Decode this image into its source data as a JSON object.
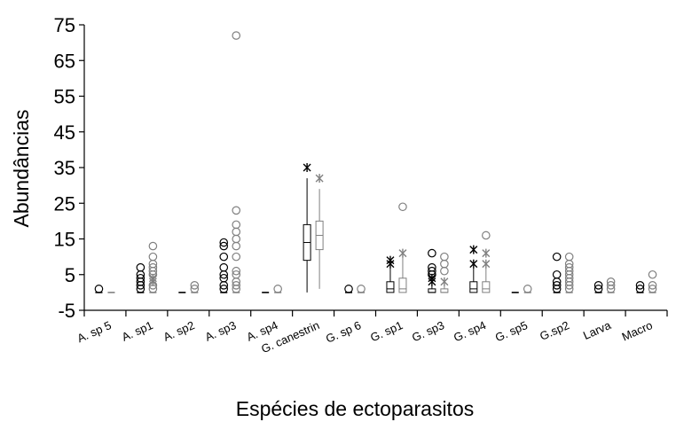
{
  "chart_data": {
    "type": "box",
    "title": "",
    "xlabel": "Espécies de ectoparasitos",
    "ylabel": "Abundâncias",
    "ylim": [
      -5,
      75
    ],
    "yticks": [
      -5,
      5,
      15,
      25,
      35,
      45,
      55,
      65,
      75
    ],
    "grid": false,
    "series_colors": {
      "a": "#000000",
      "b": "#808080"
    },
    "categories": [
      "A. sp 5",
      "A. sp1",
      "A. sp2",
      "A. sp3",
      "A. sp4",
      "G. canestrin",
      "G. sp 6",
      "G. sp1",
      "G. sp3",
      "G. sp4",
      "G. sp5",
      "G.sp2",
      "Larva",
      "Macro"
    ],
    "groups": [
      {
        "category": "A. sp 5",
        "a": {
          "q1": 0,
          "median": 0,
          "q3": 0,
          "whisker_low": 0,
          "whisker_high": 0,
          "outliers": [
            1
          ],
          "extremes": []
        },
        "b": {
          "q1": 0,
          "median": 0,
          "q3": 0,
          "whisker_low": 0,
          "whisker_high": 0,
          "outliers": [],
          "extremes": []
        }
      },
      {
        "category": "A. sp1",
        "a": {
          "q1": 0,
          "median": 0,
          "q3": 0,
          "whisker_low": 0,
          "whisker_high": 0,
          "outliers": [
            1,
            2,
            3,
            4,
            5,
            7
          ],
          "extremes": []
        },
        "b": {
          "q1": 0,
          "median": 0,
          "q3": 0,
          "whisker_low": 0,
          "whisker_high": 0,
          "outliers": [
            1,
            2,
            5,
            6,
            7,
            8,
            10,
            13
          ],
          "extremes": [
            3,
            4
          ]
        }
      },
      {
        "category": "A. sp2",
        "a": {
          "q1": 0,
          "median": 0,
          "q3": 0,
          "whisker_low": 0,
          "whisker_high": 0,
          "outliers": [],
          "extremes": []
        },
        "b": {
          "q1": 0,
          "median": 0,
          "q3": 0,
          "whisker_low": 0,
          "whisker_high": 0,
          "outliers": [
            1,
            2
          ],
          "extremes": []
        }
      },
      {
        "category": "A. sp3",
        "a": {
          "q1": 0,
          "median": 0,
          "q3": 0,
          "whisker_low": 0,
          "whisker_high": 0,
          "outliers": [
            1,
            2,
            4,
            5,
            7,
            10,
            13,
            14
          ],
          "extremes": []
        },
        "b": {
          "q1": 0,
          "median": 0,
          "q3": 0,
          "whisker_low": 0,
          "whisker_high": 0,
          "outliers": [
            1,
            2,
            3,
            5,
            6,
            10,
            13,
            15,
            17,
            19,
            23,
            72
          ],
          "extremes": []
        }
      },
      {
        "category": "A. sp4",
        "a": {
          "q1": 0,
          "median": 0,
          "q3": 0,
          "whisker_low": 0,
          "whisker_high": 0,
          "outliers": [],
          "extremes": []
        },
        "b": {
          "q1": 0,
          "median": 0,
          "q3": 0,
          "whisker_low": 0,
          "whisker_high": 0,
          "outliers": [
            1
          ],
          "extremes": []
        }
      },
      {
        "category": "G. canestrin",
        "a": {
          "q1": 9,
          "median": 14,
          "q3": 19,
          "whisker_low": 0,
          "whisker_high": 32,
          "outliers": [],
          "extremes": [
            35
          ]
        },
        "b": {
          "q1": 12,
          "median": 16,
          "q3": 20,
          "whisker_low": 1,
          "whisker_high": 29,
          "outliers": [],
          "extremes": [
            32
          ]
        }
      },
      {
        "category": "G. sp 6",
        "a": {
          "q1": 0,
          "median": 0,
          "q3": 0,
          "whisker_low": 0,
          "whisker_high": 0,
          "outliers": [
            1
          ],
          "extremes": []
        },
        "b": {
          "q1": 0,
          "median": 0,
          "q3": 0,
          "whisker_low": 0,
          "whisker_high": 0,
          "outliers": [
            1
          ],
          "extremes": []
        }
      },
      {
        "category": "G. sp1",
        "a": {
          "q1": 0,
          "median": 1,
          "q3": 3,
          "whisker_low": 0,
          "whisker_high": 7,
          "outliers": [],
          "extremes": [
            8,
            9
          ]
        },
        "b": {
          "q1": 0,
          "median": 1,
          "q3": 4,
          "whisker_low": 0,
          "whisker_high": 10,
          "outliers": [
            24
          ],
          "extremes": [
            11
          ]
        }
      },
      {
        "category": "G. sp3",
        "a": {
          "q1": 0,
          "median": 0,
          "q3": 1,
          "whisker_low": 0,
          "whisker_high": 2,
          "outliers": [
            5,
            6,
            7,
            11
          ],
          "extremes": [
            3,
            4
          ]
        },
        "b": {
          "q1": 0,
          "median": 0,
          "q3": 1,
          "whisker_low": 0,
          "whisker_high": 2,
          "outliers": [
            6,
            8,
            10
          ],
          "extremes": [
            3
          ]
        }
      },
      {
        "category": "G. sp4",
        "a": {
          "q1": 0,
          "median": 1,
          "q3": 3,
          "whisker_low": 0,
          "whisker_high": 7,
          "outliers": [],
          "extremes": [
            8,
            12
          ]
        },
        "b": {
          "q1": 0,
          "median": 1,
          "q3": 3,
          "whisker_low": 0,
          "whisker_high": 7,
          "outliers": [
            16
          ],
          "extremes": [
            8,
            11
          ]
        }
      },
      {
        "category": "G. sp5",
        "a": {
          "q1": 0,
          "median": 0,
          "q3": 0,
          "whisker_low": 0,
          "whisker_high": 0,
          "outliers": [],
          "extremes": []
        },
        "b": {
          "q1": 0,
          "median": 0,
          "q3": 0,
          "whisker_low": 0,
          "whisker_high": 0,
          "outliers": [
            1
          ],
          "extremes": []
        }
      },
      {
        "category": "G.sp2",
        "a": {
          "q1": 0,
          "median": 0,
          "q3": 0,
          "whisker_low": 0,
          "whisker_high": 0,
          "outliers": [
            1,
            2,
            3,
            5,
            10
          ],
          "extremes": []
        },
        "b": {
          "q1": 0,
          "median": 0,
          "q3": 0,
          "whisker_low": 0,
          "whisker_high": 0,
          "outliers": [
            1,
            2,
            3,
            4,
            5,
            6,
            7,
            8,
            10
          ],
          "extremes": []
        }
      },
      {
        "category": "Larva",
        "a": {
          "q1": 0,
          "median": 0,
          "q3": 0,
          "whisker_low": 0,
          "whisker_high": 0,
          "outliers": [
            1,
            2
          ],
          "extremes": []
        },
        "b": {
          "q1": 0,
          "median": 0,
          "q3": 0,
          "whisker_low": 0,
          "whisker_high": 0,
          "outliers": [
            1,
            2,
            3
          ],
          "extremes": []
        }
      },
      {
        "category": "Macro",
        "a": {
          "q1": 0,
          "median": 0,
          "q3": 0,
          "whisker_low": 0,
          "whisker_high": 0,
          "outliers": [
            1,
            2
          ],
          "extremes": []
        },
        "b": {
          "q1": 0,
          "median": 0,
          "q3": 0,
          "whisker_low": 0,
          "whisker_high": 0,
          "outliers": [
            1,
            2,
            5
          ],
          "extremes": []
        }
      }
    ]
  }
}
